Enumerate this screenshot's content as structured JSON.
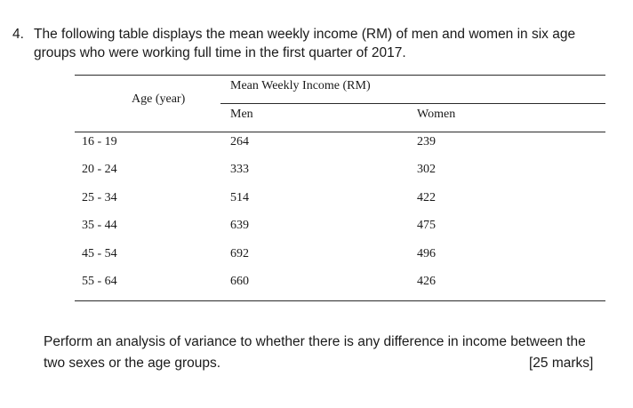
{
  "question": {
    "number": "4.",
    "line1": "The following table displays the mean weekly income (RM) of men and women in six age",
    "line2": "groups who were working full time in the first quarter of 2017."
  },
  "table": {
    "age_header": "Age (year)",
    "group_header": "Mean Weekly Income (RM)",
    "men_header": "Men",
    "women_header": "Women",
    "rows": [
      {
        "age": "16 - 19",
        "men": "264",
        "women": "239"
      },
      {
        "age": "20 - 24",
        "men": "333",
        "women": "302"
      },
      {
        "age": "25 - 34",
        "men": "514",
        "women": "422"
      },
      {
        "age": "35 - 44",
        "men": "639",
        "women": "475"
      },
      {
        "age": "45 - 54",
        "men": "692",
        "women": "496"
      },
      {
        "age": "55 - 64",
        "men": "660",
        "women": "426"
      }
    ]
  },
  "task": {
    "line1": "Perform an analysis of variance to whether there is any difference in income between the",
    "line2": "two sexes or the age groups.",
    "marks": "[25 marks]"
  }
}
